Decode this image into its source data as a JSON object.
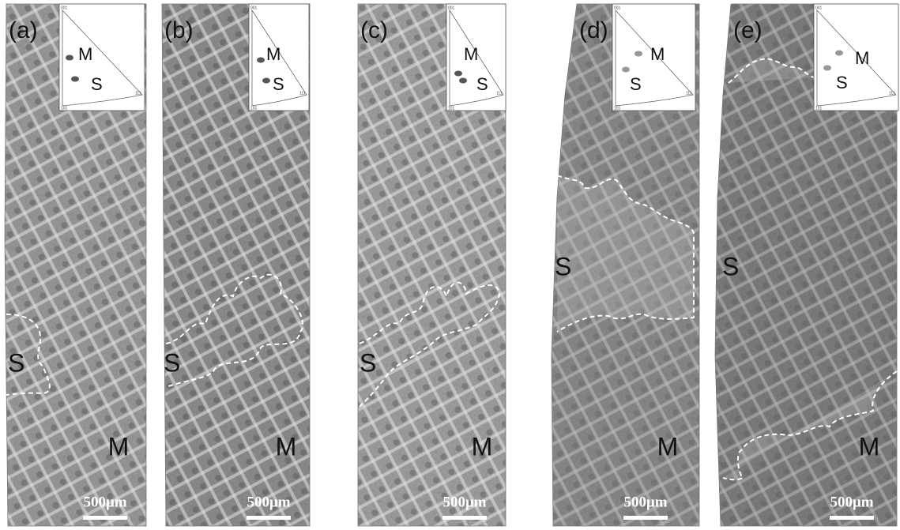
{
  "panels": [
    {
      "label": "(a)",
      "inset": {
        "corners": [
          "001",
          "101",
          "111"
        ],
        "labels": [
          "M",
          "S"
        ]
      },
      "regions": [
        "S",
        "M"
      ],
      "scale_bar": "500μm"
    },
    {
      "label": "(b)",
      "inset": {
        "corners": [
          "001",
          "101",
          "111"
        ],
        "labels": [
          "M",
          "S"
        ]
      },
      "regions": [
        "S",
        "M"
      ],
      "scale_bar": "500μm"
    },
    {
      "label": "(c)",
      "inset": {
        "corners": [
          "001",
          "101",
          "111"
        ],
        "labels": [
          "M",
          "S"
        ]
      },
      "regions": [
        "S",
        "M"
      ],
      "scale_bar": "500μm"
    },
    {
      "label": "(d)",
      "inset": {
        "corners": [
          "001",
          "101",
          "111"
        ],
        "labels": [
          "M",
          "S"
        ]
      },
      "regions": [
        "S",
        "M"
      ],
      "scale_bar": "500μm"
    },
    {
      "label": "(e)",
      "inset": {
        "corners": [
          "001",
          "101",
          "111"
        ],
        "labels": [
          "M",
          "S"
        ]
      },
      "regions": [
        "S",
        "M"
      ],
      "scale_bar": "500μm"
    }
  ]
}
